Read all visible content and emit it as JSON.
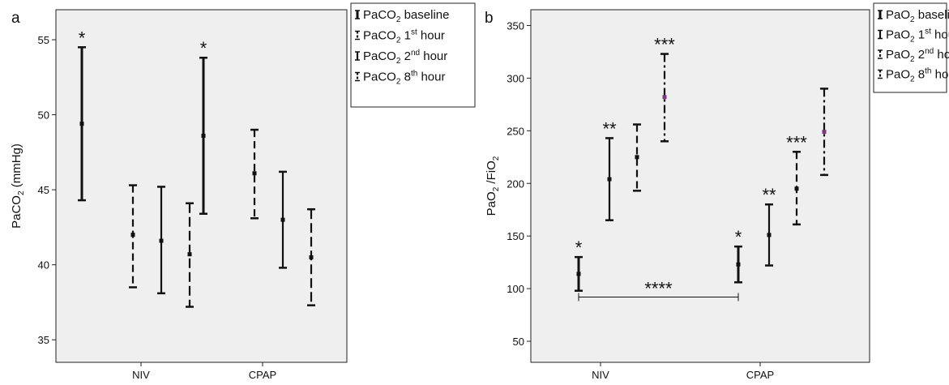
{
  "chart_data": [
    {
      "panel_label": "a",
      "type": "errorbar",
      "ylabel": "PaCO",
      "ylabel_sub": "2",
      "ylabel_suffix": " (mmHg)",
      "ylim": [
        33.5,
        57
      ],
      "yticks": [
        35,
        40,
        45,
        50,
        55
      ],
      "categories": [
        "NIV",
        "CPAP"
      ],
      "legend_position": "right-outside-top",
      "background": "#efefef",
      "series": [
        {
          "legend_main": "PaCO",
          "legend_sub": "2",
          "legend_post": " baseline",
          "legend_sup": "",
          "legend_tail": "",
          "dash": "solid",
          "stroke_width": 3
        },
        {
          "legend_main": "PaCO",
          "legend_sub": "2",
          "legend_post": " 1",
          "legend_sup": "st",
          "legend_tail": " hour",
          "dash": "dashed",
          "stroke_width": 2.2
        },
        {
          "legend_main": "PaCO",
          "legend_sub": "2",
          "legend_post": " 2",
          "legend_sup": "nd",
          "legend_tail": " hour",
          "dash": "solid",
          "stroke_width": 2.2
        },
        {
          "legend_main": "PaCO",
          "legend_sub": "2",
          "legend_post": " 8",
          "legend_sup": "th",
          "legend_tail": " hour",
          "dash": "longdash",
          "stroke_width": 2.2
        }
      ],
      "bars": [
        {
          "category": 0,
          "series": 0,
          "mean": 49.4,
          "low": 44.3,
          "high": 54.5,
          "mark": "*"
        },
        {
          "category": 0,
          "series": 1,
          "mean": 42.0,
          "low": 38.5,
          "high": 45.3,
          "mark": ""
        },
        {
          "category": 0,
          "series": 2,
          "mean": 41.6,
          "low": 38.1,
          "high": 45.2,
          "mark": ""
        },
        {
          "category": 0,
          "series": 3,
          "mean": 40.7,
          "low": 37.2,
          "high": 44.1,
          "mark": ""
        },
        {
          "category": 1,
          "series": 0,
          "mean": 48.6,
          "low": 43.4,
          "high": 53.8,
          "mark": "*"
        },
        {
          "category": 1,
          "series": 1,
          "mean": 46.1,
          "low": 43.1,
          "high": 49.0,
          "mark": ""
        },
        {
          "category": 1,
          "series": 2,
          "mean": 43.0,
          "low": 39.8,
          "high": 46.2,
          "mark": ""
        },
        {
          "category": 1,
          "series": 3,
          "mean": 40.5,
          "low": 37.3,
          "high": 43.7,
          "mark": ""
        }
      ]
    },
    {
      "panel_label": "b",
      "type": "errorbar",
      "ylabel": "PaO",
      "ylabel_sub": "2",
      "ylabel_suffix": " /FiO",
      "ylabel_sub2": "2",
      "ylim": [
        30,
        365
      ],
      "yticks": [
        50,
        100,
        150,
        200,
        250,
        300,
        350
      ],
      "categories": [
        "NIV",
        "CPAP"
      ],
      "legend_position": "right-outside-top",
      "background": "#efefef",
      "series": [
        {
          "legend_main": "PaO",
          "legend_sub": "2",
          "legend_post": " baseline",
          "legend_sup": "",
          "legend_tail": "",
          "dash": "solid",
          "stroke_width": 3
        },
        {
          "legend_main": "PaO",
          "legend_sub": "2",
          "legend_post": " 1",
          "legend_sup": "st",
          "legend_tail": " hour",
          "dash": "solid",
          "stroke_width": 2.2
        },
        {
          "legend_main": "PaO",
          "legend_sub": "2",
          "legend_post": " 2",
          "legend_sup": "nd",
          "legend_tail": " hour",
          "dash": "dashed",
          "stroke_width": 2.2
        },
        {
          "legend_main": "PaO",
          "legend_sub": "2",
          "legend_post": " 8",
          "legend_sup": "th",
          "legend_tail": " hour",
          "dash": "dashdot",
          "stroke_width": 2.2
        }
      ],
      "bars": [
        {
          "category": 0,
          "series": 0,
          "mean": 114,
          "low": 98,
          "high": 130,
          "mark": "*",
          "point_color": "#111111"
        },
        {
          "category": 0,
          "series": 1,
          "mean": 204,
          "low": 165,
          "high": 243,
          "mark": "**",
          "point_color": "#111111"
        },
        {
          "category": 0,
          "series": 2,
          "mean": 225,
          "low": 193,
          "high": 256,
          "mark": "",
          "point_color": "#111111"
        },
        {
          "category": 0,
          "series": 3,
          "mean": 282,
          "low": 240,
          "high": 323,
          "mark": "***",
          "point_color": "#7a3a7a"
        },
        {
          "category": 1,
          "series": 0,
          "mean": 123,
          "low": 106,
          "high": 140,
          "mark": "*",
          "point_color": "#111111"
        },
        {
          "category": 1,
          "series": 1,
          "mean": 151,
          "low": 122,
          "high": 180,
          "mark": "**",
          "point_color": "#111111"
        },
        {
          "category": 1,
          "series": 2,
          "mean": 195,
          "low": 161,
          "high": 230,
          "mark": "***",
          "point_color": "#111111"
        },
        {
          "category": 1,
          "series": 3,
          "mean": 249,
          "low": 208,
          "high": 290,
          "mark": "",
          "point_color": "#7a3a7a"
        }
      ],
      "bracket": {
        "from_category": 0,
        "from_series": 0,
        "to_category": 1,
        "to_series": 0,
        "y": 92,
        "label": "****"
      }
    }
  ]
}
